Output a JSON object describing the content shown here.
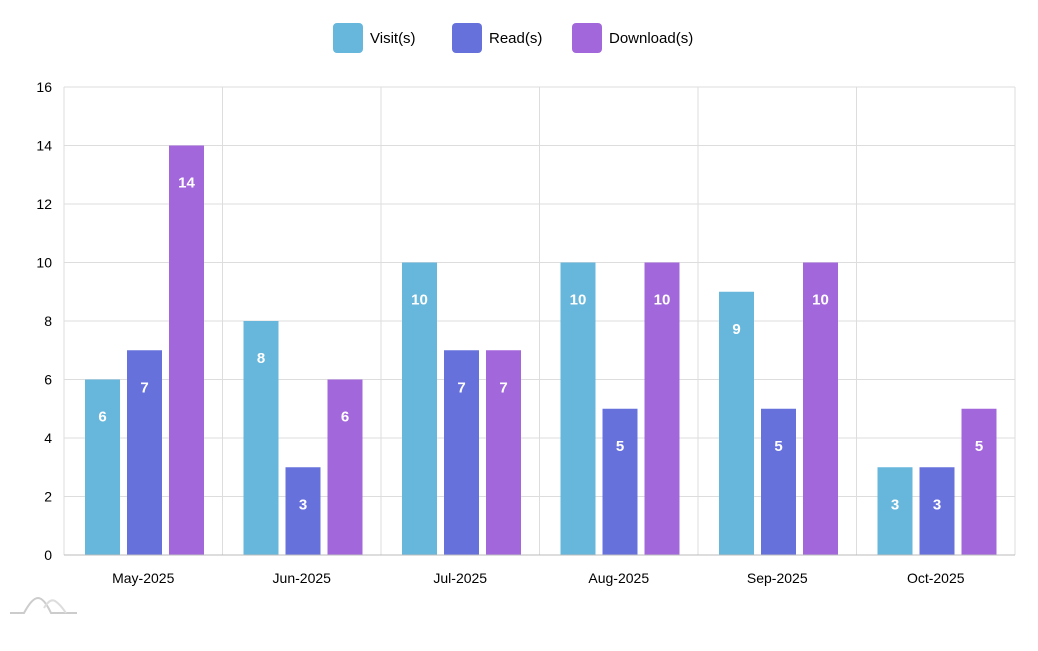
{
  "chart_data": {
    "type": "bar",
    "title": "",
    "xlabel": "",
    "ylabel": "",
    "categories": [
      "May-2025",
      "Jun-2025",
      "Jul-2025",
      "Aug-2025",
      "Sep-2025",
      "Oct-2025"
    ],
    "series": [
      {
        "name": "Visit(s)",
        "color": "#67b7dc",
        "values": [
          6,
          8,
          10,
          10,
          9,
          3
        ]
      },
      {
        "name": "Read(s)",
        "color": "#6771dc",
        "values": [
          7,
          3,
          7,
          5,
          5,
          3
        ]
      },
      {
        "name": "Download(s)",
        "color": "#a367dc",
        "values": [
          14,
          6,
          7,
          10,
          10,
          5
        ]
      }
    ],
    "ylim": [
      0,
      16
    ],
    "yticks": [
      0,
      2,
      4,
      6,
      8,
      10,
      12,
      14,
      16
    ],
    "grid": true,
    "legend": "top-center",
    "data_labels": true
  }
}
